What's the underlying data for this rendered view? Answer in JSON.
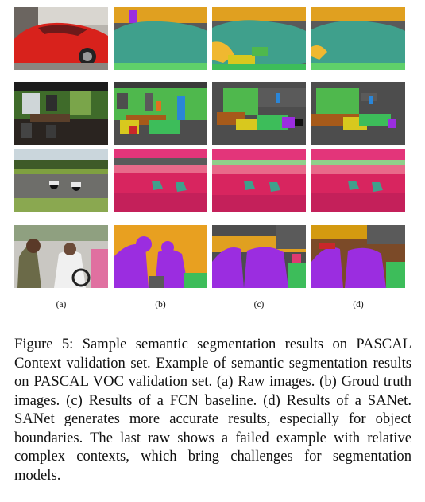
{
  "figure": {
    "column_labels": [
      "(a)",
      "(b)",
      "(c)",
      "(d)"
    ],
    "rows": [
      {
        "row": 1,
        "content": "red car"
      },
      {
        "row": 2,
        "content": "indoor room with green walls"
      },
      {
        "row": 3,
        "content": "motorcycle race track"
      },
      {
        "row": 4,
        "content": "two people with bicycle"
      }
    ],
    "palette": {
      "background_dark": "#4d4d4d",
      "car_teal": "#3fa08c",
      "sky_orange": "#e0a020",
      "ground_green": "#3dbd5a",
      "road_pink": "#d8255f",
      "grass_magenta": "#e03a70",
      "person_purple": "#9b2de0",
      "tree_orange": "#d49a10",
      "wall_green": "#4fb84d",
      "window_blue": "#2a86d8",
      "table_brown": "#a65a1a",
      "chair_yellow": "#d8c81e"
    }
  },
  "caption": "Figure 5: Sample semantic segmentation results on PASCAL Context validation set. Example of semantic segmentation results on PASCAL VOC validation set. (a) Raw images. (b) Groud truth images. (c) Results of a FCN baseline. (d) Results of a SANet. SANet generates more accurate results, especially for object boundaries. The last raw shows a failed example with relative complex contexts, which bring challenges for segmentation models."
}
